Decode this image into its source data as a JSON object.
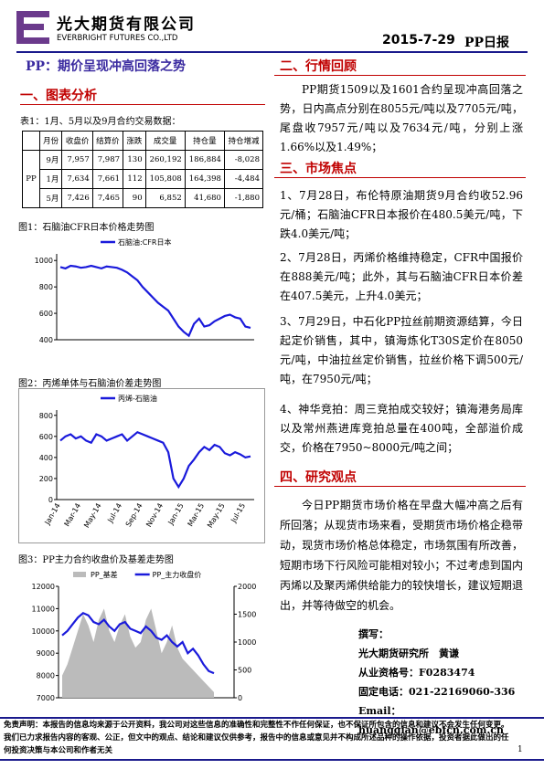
{
  "header": {
    "company_cn": "光大期货有限公司",
    "company_en": "EVERBRIGHT FUTURES CO.,LTD",
    "date": "2015-7-29",
    "report": "PP日报"
  },
  "title": "PP：期价呈现冲高回落之势",
  "section1": "一、图表分析",
  "table_caption": "表1：1月、5月以及9月合约交易数据：",
  "table": {
    "headers": [
      "月份",
      "收盘价",
      "结算价",
      "涨跌",
      "成交量",
      "持仓量",
      "持仓增减"
    ],
    "product": "PP",
    "rows": [
      [
        "9月",
        "7,957",
        "7,987",
        "130",
        "260,192",
        "186,884",
        "-8,028"
      ],
      [
        "1月",
        "7,634",
        "7,661",
        "112",
        "105,808",
        "164,398",
        "-4,484"
      ],
      [
        "5月",
        "7,426",
        "7,465",
        "90",
        "6,852",
        "41,680",
        "-1,880"
      ]
    ]
  },
  "captions": [
    "图1：石脑油CFR日本价格走势图",
    "图2：丙烯单体与石脑油价差走势图",
    "图3：PP主力合约收盘价及基差走势图"
  ],
  "chart_data": [
    {
      "type": "line",
      "ylim": [
        400,
        1050
      ],
      "yticks": [
        400,
        600,
        800,
        1000
      ],
      "series": [
        {
          "name": "石脑油:CFR日本",
          "color": "#1a1adb",
          "values": [
            950,
            940,
            960,
            955,
            945,
            950,
            960,
            950,
            940,
            955,
            950,
            945,
            930,
            910,
            880,
            850,
            800,
            760,
            720,
            680,
            650,
            620,
            560,
            500,
            460,
            430,
            520,
            560,
            500,
            510,
            540,
            560,
            580,
            590,
            570,
            560,
            500,
            490
          ]
        }
      ]
    },
    {
      "type": "line",
      "ylim": [
        0,
        850
      ],
      "yticks": [
        0,
        200,
        400,
        600,
        800
      ],
      "categories": [
        "Jan-14",
        null,
        null,
        null,
        "Mar-14",
        null,
        null,
        null,
        "May-14",
        null,
        null,
        null,
        "Jul-14",
        null,
        null,
        null,
        "Sep-14",
        null,
        null,
        null,
        "Nov-14",
        null,
        null,
        null,
        "Jan-15",
        null,
        null,
        null,
        "Mar-15",
        null,
        null,
        null,
        "May-15",
        null,
        null,
        null,
        "Jul-15",
        null
      ],
      "series": [
        {
          "name": "丙烯-石脑油",
          "color": "#1a1adb",
          "values": [
            560,
            600,
            620,
            580,
            600,
            560,
            540,
            620,
            600,
            560,
            580,
            600,
            620,
            560,
            600,
            640,
            620,
            600,
            580,
            560,
            540,
            450,
            200,
            120,
            200,
            320,
            380,
            450,
            500,
            470,
            520,
            500,
            440,
            420,
            450,
            430,
            400,
            410
          ]
        }
      ]
    },
    {
      "type": "line",
      "ylim": [
        7000,
        12000
      ],
      "yticks": [
        7000,
        8000,
        9000,
        10000,
        11000,
        12000
      ],
      "y2lim": [
        0,
        2000
      ],
      "y2ticks": [
        0,
        500,
        1000,
        1500,
        2000
      ],
      "series": [
        {
          "name": "PP_基差",
          "color": "#bbbbbb",
          "axis": "y2",
          "values": [
            400,
            600,
            900,
            1200,
            1500,
            1300,
            1000,
            1400,
            1600,
            1200,
            1000,
            1300,
            1500,
            1100,
            900,
            1000,
            1400,
            1600,
            1200,
            800,
            1000,
            1300,
            900,
            700,
            600,
            500,
            400,
            300,
            200,
            100
          ]
        },
        {
          "name": "PP_主力收盘价",
          "color": "#1a1adb",
          "values": [
            9800,
            10000,
            10300,
            10600,
            10800,
            10700,
            10400,
            10300,
            10500,
            10200,
            10000,
            10300,
            10400,
            10100,
            10000,
            9900,
            10200,
            10000,
            9700,
            9600,
            9800,
            9500,
            9300,
            9500,
            9000,
            9200,
            8900,
            8500,
            8200,
            8100
          ]
        }
      ]
    }
  ],
  "section2": "二、行情回顾",
  "review": "PP期货1509以及1601合约呈现冲高回落之势，日内高点分别在8055元/吨以及7705元/吨，尾盘收7957元/吨以及7634元/吨，分别上涨1.66%以及1.49%；",
  "section3": "三、市场焦点",
  "focus": [
    "1、7月28日，布伦特原油期货9月合约收52.96元/桶；石脑油CFR日本报价在480.5美元/吨，下跌4.0美元/吨；",
    "2、7月28日，丙烯价格维持稳定，CFR中国报价在888美元/吨；此外，其与石脑油CFR日本价差在407.5美元，上升4.0美元；",
    "3、7月29日，中石化PP拉丝前期资源结算，今日起定价销售，其中，镇海炼化T30S定价在8050元/吨，中油拉丝定价销售，拉丝价格下调500元/吨，在7950元/吨；",
    "4、神华竞拍：周三竞拍成交较好；镇海港务局库以及常州燕进库竞拍总量在400吨，全部溢价成交，价格在7950~8000元/吨之间；"
  ],
  "section4": "四、研究观点",
  "opinion": "今日PP期货市场价格在早盘大幅冲高之后有所回落；从现货市场来看，受期货市场价格企稳带动，现货市场价格总体稳定，市场氛围有所改善，短期市场下行风险可能相对较小；不过考虑到国内丙烯以及聚丙烯供给能力的较快增长，建议短期退出，并等待做空的机会。",
  "author": {
    "label": "撰写：",
    "name": "光大期货研究所　黄谦",
    "license": "从业资格号：F0283474",
    "phone": "固定电话：021-22169060-336",
    "email": "Email：huangqian@ebfcn.com.cn"
  },
  "disclaimer": "免责声明：本报告的信息均来源于公开资料，我公司对这些信息的准确性和完整性不作任何保证，也不保证所包含的信息和建议不会发生任何变更。我们已力求报告内容的客观、公正，但文中的观点、结论和建议仅供参考，报告中的信息或意见并不构成所述品种的操作依据，投资者据此做出的任何投资决策与本公司和作者无关",
  "page": "1"
}
